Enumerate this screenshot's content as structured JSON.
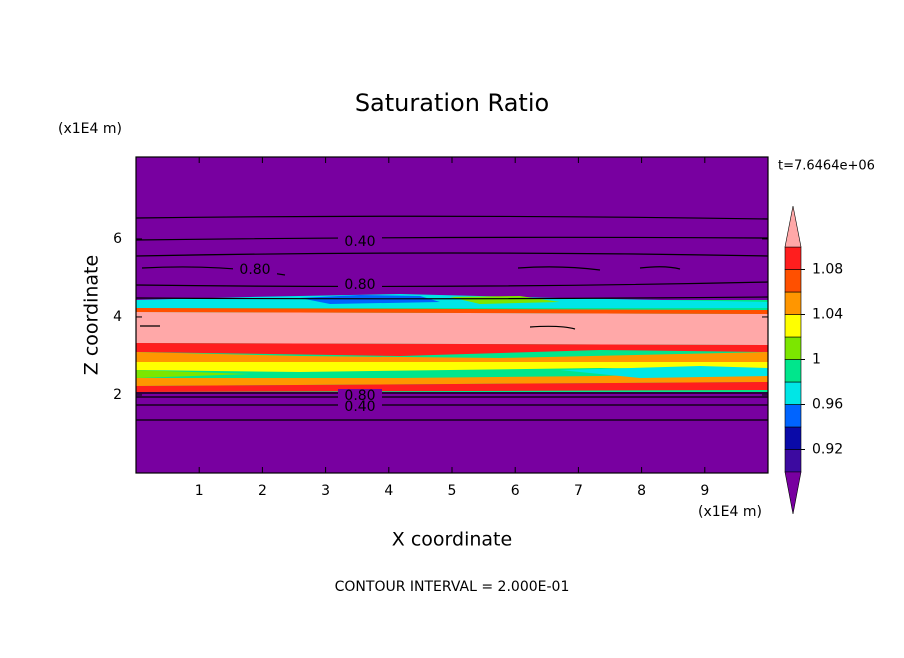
{
  "chart_data": {
    "type": "contour",
    "title": "Saturation Ratio",
    "x_label": "X coordinate",
    "y_label": "Z coordinate",
    "x_unit": "(x1E4 m)",
    "y_unit": "(x1E4 m)",
    "time_label": "t=7.6464e+06",
    "footer": "CONTOUR INTERVAL = 2.000E-01",
    "xlim": [
      0,
      10
    ],
    "xticks": [
      1,
      2,
      3,
      4,
      5,
      6,
      7,
      8,
      9
    ],
    "ylim": [
      0,
      8.1
    ],
    "yticks": [
      2,
      4,
      6
    ],
    "background_color": "#7800a0",
    "contour_labels": [
      "0.40",
      "0.80",
      "0.80",
      "0.80",
      "0.40"
    ],
    "colorbar": {
      "lim": [
        0.9,
        1.1
      ],
      "ticks": [
        0.92,
        0.96,
        1,
        1.04,
        1.08
      ],
      "colors": [
        "#3c0aa0",
        "#0a0aa8",
        "#0064ff",
        "#00e6e6",
        "#00e68c",
        "#7ce600",
        "#ffff00",
        "#ff9600",
        "#ff5000",
        "#ff1e1e"
      ],
      "under_color": "#7800a0",
      "over_color": "#ffa8a8"
    }
  }
}
